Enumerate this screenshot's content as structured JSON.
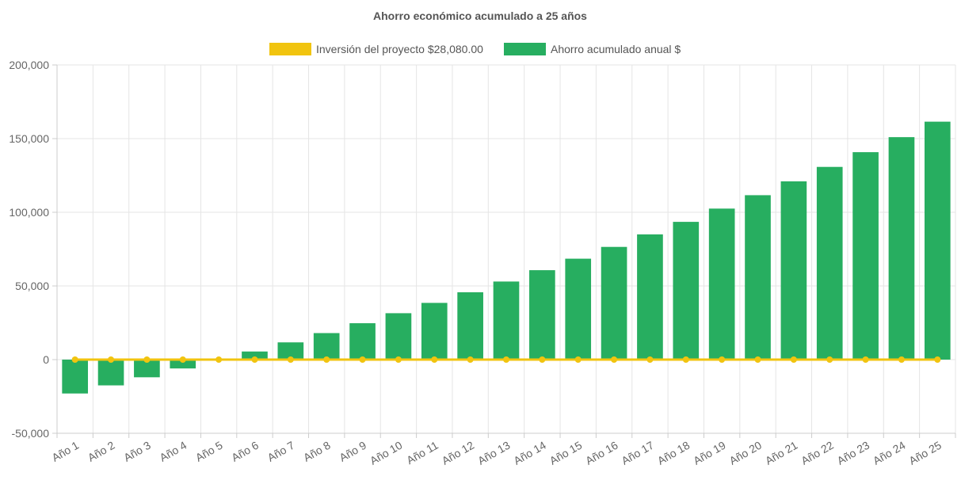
{
  "chart_data": {
    "type": "bar",
    "title": "Ahorro económico acumulado a 25 años",
    "categories": [
      "Año 1",
      "Año 2",
      "Año 3",
      "Año 4",
      "Año 5",
      "Año 6",
      "Año 7",
      "Año 8",
      "Año 9",
      "Año 10",
      "Año 11",
      "Año 12",
      "Año 13",
      "Año 14",
      "Año 15",
      "Año 16",
      "Año 17",
      "Año 18",
      "Año 19",
      "Año 20",
      "Año 21",
      "Año 22",
      "Año 23",
      "Año 24",
      "Año 25"
    ],
    "series": [
      {
        "name": "Inversión del proyecto $28,080.00",
        "type": "line",
        "color": "#f1c40f",
        "values": [
          0,
          0,
          0,
          0,
          0,
          0,
          0,
          0,
          0,
          0,
          0,
          0,
          0,
          0,
          0,
          0,
          0,
          0,
          0,
          0,
          0,
          0,
          0,
          0,
          0
        ]
      },
      {
        "name": "Ahorro acumulado anual $",
        "type": "bar",
        "color": "#27ae60",
        "values": [
          -23000,
          -17500,
          -12000,
          -6000,
          0,
          5500,
          11700,
          18000,
          24700,
          31500,
          38500,
          45700,
          53000,
          60700,
          68500,
          76500,
          85000,
          93500,
          102500,
          111600,
          121000,
          130800,
          140800,
          151000,
          161500
        ]
      }
    ],
    "yticks": [
      "200,000",
      "150,000",
      "100,000",
      "50,000",
      "0",
      "-50,000"
    ],
    "ylim": [
      -50000,
      200000
    ],
    "grid": true,
    "legend_position": "top"
  }
}
